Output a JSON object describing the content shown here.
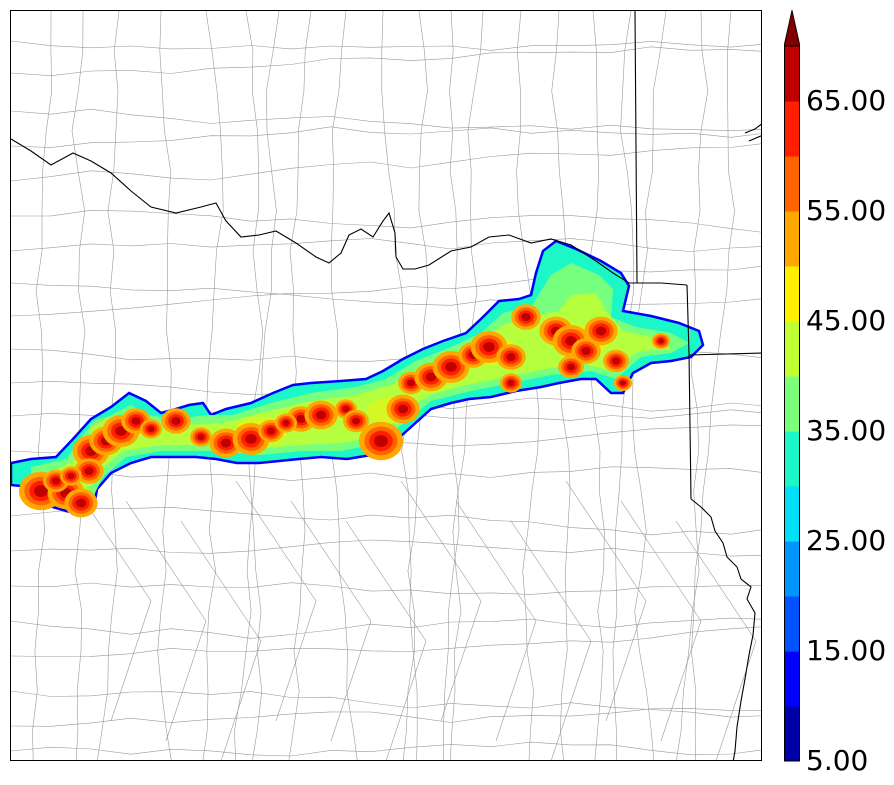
{
  "colorbar": {
    "tick_labels": [
      "5.00",
      "15.00",
      "25.00",
      "35.00",
      "45.00",
      "55.00",
      "65.00"
    ],
    "levels": [
      5,
      10,
      15,
      20,
      25,
      30,
      35,
      40,
      45,
      50,
      55,
      60,
      65,
      70
    ],
    "colors": [
      "#0000a8",
      "#0000ff",
      "#0052ff",
      "#0094ff",
      "#00e0f8",
      "#1cf7c8",
      "#7cff7a",
      "#c0ff32",
      "#fff000",
      "#ffa800",
      "#ff6400",
      "#ff1e00",
      "#c00000"
    ],
    "extend_color": "#800000",
    "extend": "max"
  },
  "colors": {
    "state_border": "#000000",
    "county_border": "#9a9a9a",
    "background": "#ffffff"
  }
}
